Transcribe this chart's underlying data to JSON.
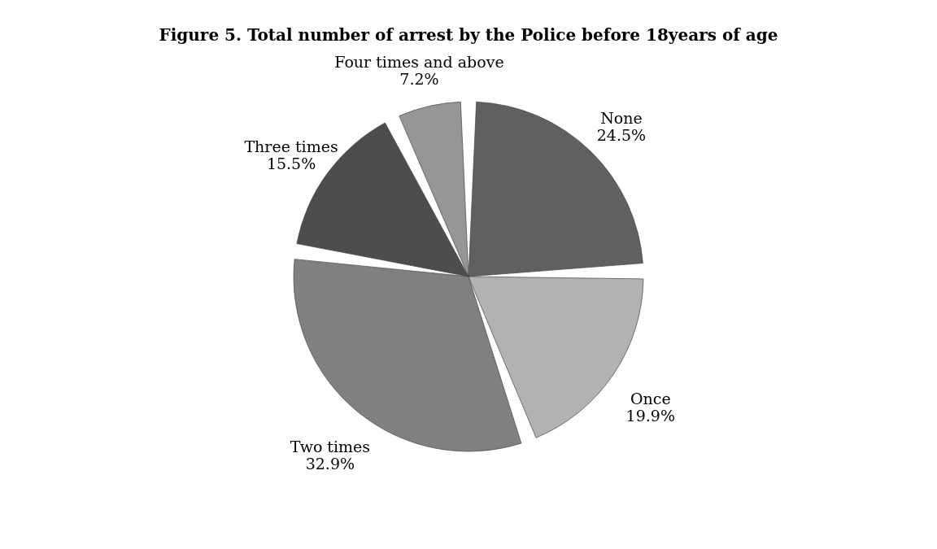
{
  "chart_data": {
    "type": "pie",
    "title": "Figure 5. Total number of arrest by the Police before 18years of age",
    "categories": [
      "None",
      "Once",
      "Two times",
      "Three times",
      "Four times and above"
    ],
    "values": [
      24.5,
      19.9,
      32.9,
      15.5,
      7.2
    ],
    "colors": [
      "#606060",
      "#b2b2b2",
      "#808080",
      "#4d4d4d",
      "#969696"
    ],
    "value_labels": [
      "24.5%",
      "19.9%",
      "32.9%",
      "15.5%",
      "7.2%"
    ]
  }
}
